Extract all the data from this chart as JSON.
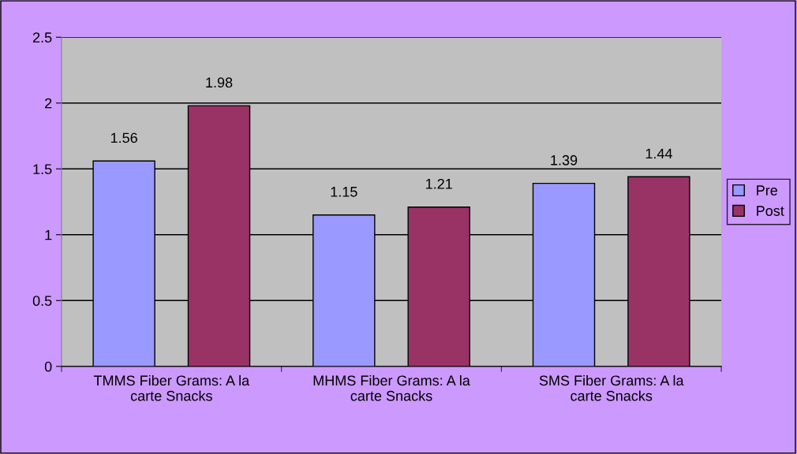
{
  "chart_data": {
    "type": "bar",
    "categories": [
      "TMMS Fiber Grams: A la\ncarte Snacks",
      "MHMS Fiber Grams: A la\ncarte Snacks",
      "SMS Fiber Grams: A la\ncarte Snacks"
    ],
    "series": [
      {
        "name": "Pre",
        "color": "#9999ff",
        "values": [
          1.56,
          1.15,
          1.39
        ]
      },
      {
        "name": "Post",
        "color": "#993366",
        "values": [
          1.98,
          1.21,
          1.44
        ]
      }
    ],
    "ylim": [
      0,
      2.5
    ],
    "yticks": [
      0,
      0.5,
      1,
      1.5,
      2,
      2.5
    ],
    "grid": "y",
    "legend": "right",
    "data_labels": true
  }
}
